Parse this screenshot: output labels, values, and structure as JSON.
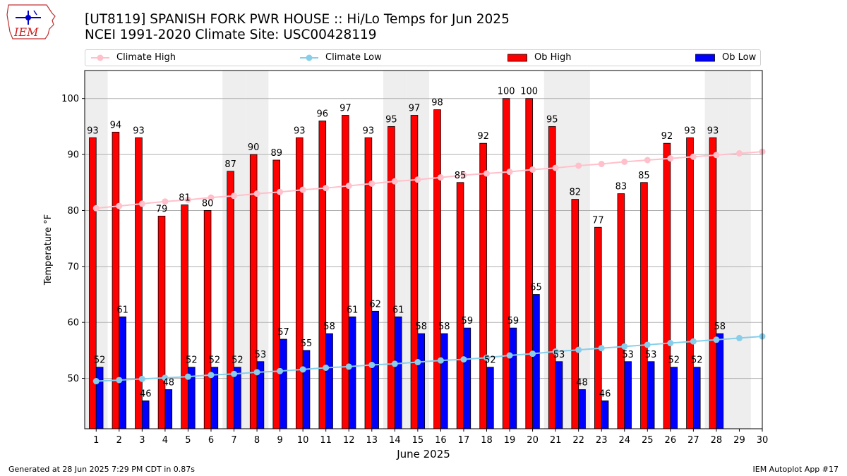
{
  "header": {
    "title_line1": "[UT8119] SPANISH FORK PWR HOUSE :: Hi/Lo Temps for Jun 2025",
    "title_line2": "NCEI 1991-2020 Climate Site: USC00428119",
    "logo_text": "IEM"
  },
  "legend": {
    "climate_high": "Climate High",
    "climate_low": "Climate Low",
    "ob_high": "Ob High",
    "ob_low": "Ob Low"
  },
  "footer": {
    "left": "Generated at 28 Jun 2025 7:29 PM CDT in 0.87s",
    "right": "IEM Autoplot App #17"
  },
  "colors": {
    "ob_high": "#ff0000",
    "ob_low": "#0000ff",
    "climate_high": "#ffc0cb",
    "climate_low": "#87ceeb",
    "weekend_shade": "#eeeeee",
    "grid": "#b0b0b0"
  },
  "chart_data": {
    "type": "bar",
    "xlabel": "June 2025",
    "ylabel": "Temperature °F",
    "ylim": [
      41,
      105
    ],
    "yticks": [
      50,
      60,
      70,
      80,
      90,
      100
    ],
    "grid": "horizontal",
    "legend_position": "top",
    "categories": [
      "1",
      "2",
      "3",
      "4",
      "5",
      "6",
      "7",
      "8",
      "9",
      "10",
      "11",
      "12",
      "13",
      "14",
      "15",
      "16",
      "17",
      "18",
      "19",
      "20",
      "21",
      "22",
      "23",
      "24",
      "25",
      "26",
      "27",
      "28",
      "29",
      "30"
    ],
    "weekend_days": [
      1,
      7,
      8,
      14,
      15,
      21,
      22,
      28,
      29
    ],
    "series": [
      {
        "name": "Ob High",
        "kind": "bar",
        "values": [
          93,
          94,
          93,
          79,
          81,
          80,
          87,
          90,
          89,
          93,
          96,
          97,
          93,
          95,
          97,
          98,
          85,
          92,
          100,
          100,
          95,
          82,
          77,
          83,
          85,
          92,
          93,
          93,
          null,
          null
        ]
      },
      {
        "name": "Ob Low",
        "kind": "bar",
        "values": [
          52,
          61,
          46,
          48,
          52,
          52,
          52,
          53,
          57,
          55,
          58,
          61,
          62,
          61,
          58,
          58,
          59,
          52,
          59,
          65,
          53,
          48,
          46,
          53,
          53,
          52,
          52,
          58,
          null,
          null
        ]
      },
      {
        "name": "Climate High",
        "kind": "line",
        "values": [
          80.4,
          80.8,
          81.2,
          81.6,
          81.9,
          82.3,
          82.6,
          83.0,
          83.3,
          83.7,
          84.0,
          84.4,
          84.8,
          85.2,
          85.5,
          85.9,
          86.3,
          86.6,
          86.9,
          87.3,
          87.6,
          88.0,
          88.3,
          88.7,
          89.0,
          89.3,
          89.6,
          89.9,
          90.2,
          90.5
        ]
      },
      {
        "name": "Climate Low",
        "kind": "line",
        "values": [
          49.5,
          49.7,
          49.9,
          50.1,
          50.3,
          50.6,
          50.8,
          51.1,
          51.3,
          51.6,
          51.9,
          52.1,
          52.4,
          52.6,
          52.9,
          53.2,
          53.4,
          53.7,
          54.1,
          54.4,
          54.8,
          55.1,
          55.4,
          55.7,
          56.0,
          56.3,
          56.6,
          56.9,
          57.2,
          57.5
        ]
      }
    ]
  }
}
